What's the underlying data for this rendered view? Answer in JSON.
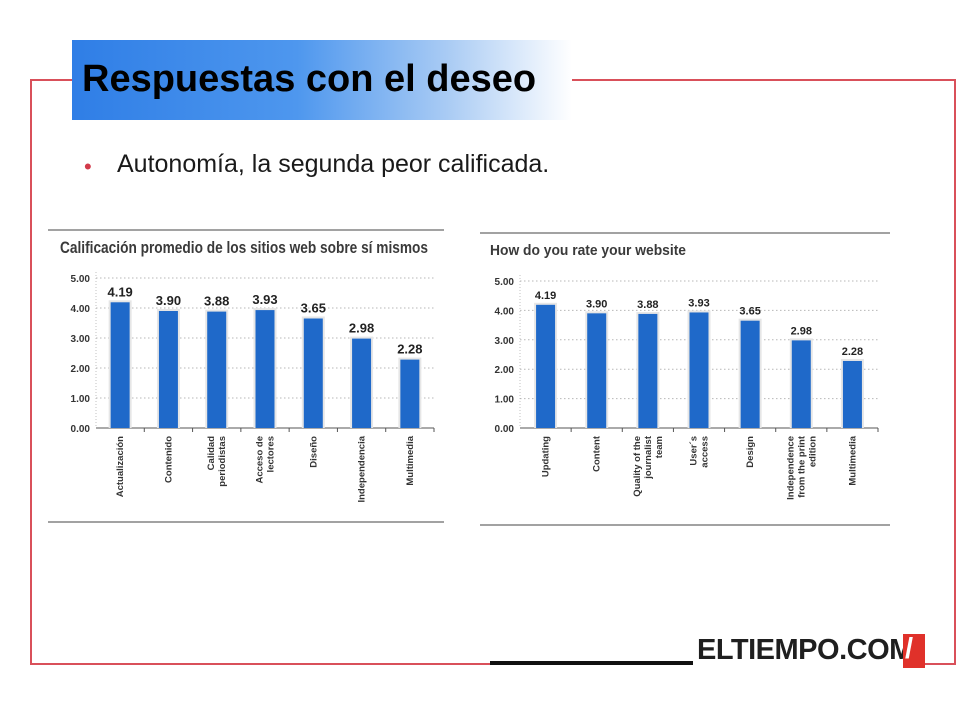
{
  "slide": {
    "title": "Respuestas con el deseo",
    "bullet": "Autonomía, la segunda peor calificada.",
    "logo_text": "ELTIEMPO.COM",
    "logo_slash": "/"
  },
  "colors": {
    "accent": "#d23a4a",
    "bar": "#1f69c9",
    "title_band": "#2f7ee6",
    "logo_red": "#e0312a"
  },
  "chart_data": [
    {
      "type": "bar",
      "title": "Calificación promedio de los sitios web sobre sí mismos",
      "categories": [
        [
          "Actualización"
        ],
        [
          "Contenido"
        ],
        [
          "Calidad",
          "periodistas"
        ],
        [
          "Acceso de",
          "lectores"
        ],
        [
          "Diseño"
        ],
        [
          "Independencia"
        ],
        [
          "Multimedia"
        ]
      ],
      "values": [
        4.19,
        3.9,
        3.88,
        3.93,
        3.65,
        2.98,
        2.28
      ],
      "value_labels": [
        "4.19",
        "3.90",
        "3.88",
        "3.93",
        "3.65",
        "2.98",
        "2.28"
      ],
      "yticks": [
        "0.00",
        "1.00",
        "2.00",
        "3.00",
        "4.00",
        "5.00"
      ],
      "ylim": [
        0,
        5
      ],
      "grid": true
    },
    {
      "type": "bar",
      "title": "How do you rate your website",
      "categories": [
        [
          "Updating"
        ],
        [
          "Content"
        ],
        [
          "Quality of the",
          "journalist",
          "team"
        ],
        [
          "User´s",
          "access"
        ],
        [
          "Design"
        ],
        [
          "Independence",
          "from the print",
          "edition"
        ],
        [
          "Multimedia"
        ]
      ],
      "values": [
        4.19,
        3.9,
        3.88,
        3.93,
        3.65,
        2.98,
        2.28
      ],
      "value_labels": [
        "4.19",
        "3.90",
        "3.88",
        "3.93",
        "3.65",
        "2.98",
        "2.28"
      ],
      "yticks": [
        "0.00",
        "1.00",
        "2.00",
        "3.00",
        "4.00",
        "5.00"
      ],
      "ylim": [
        0,
        5
      ],
      "grid": true
    }
  ]
}
